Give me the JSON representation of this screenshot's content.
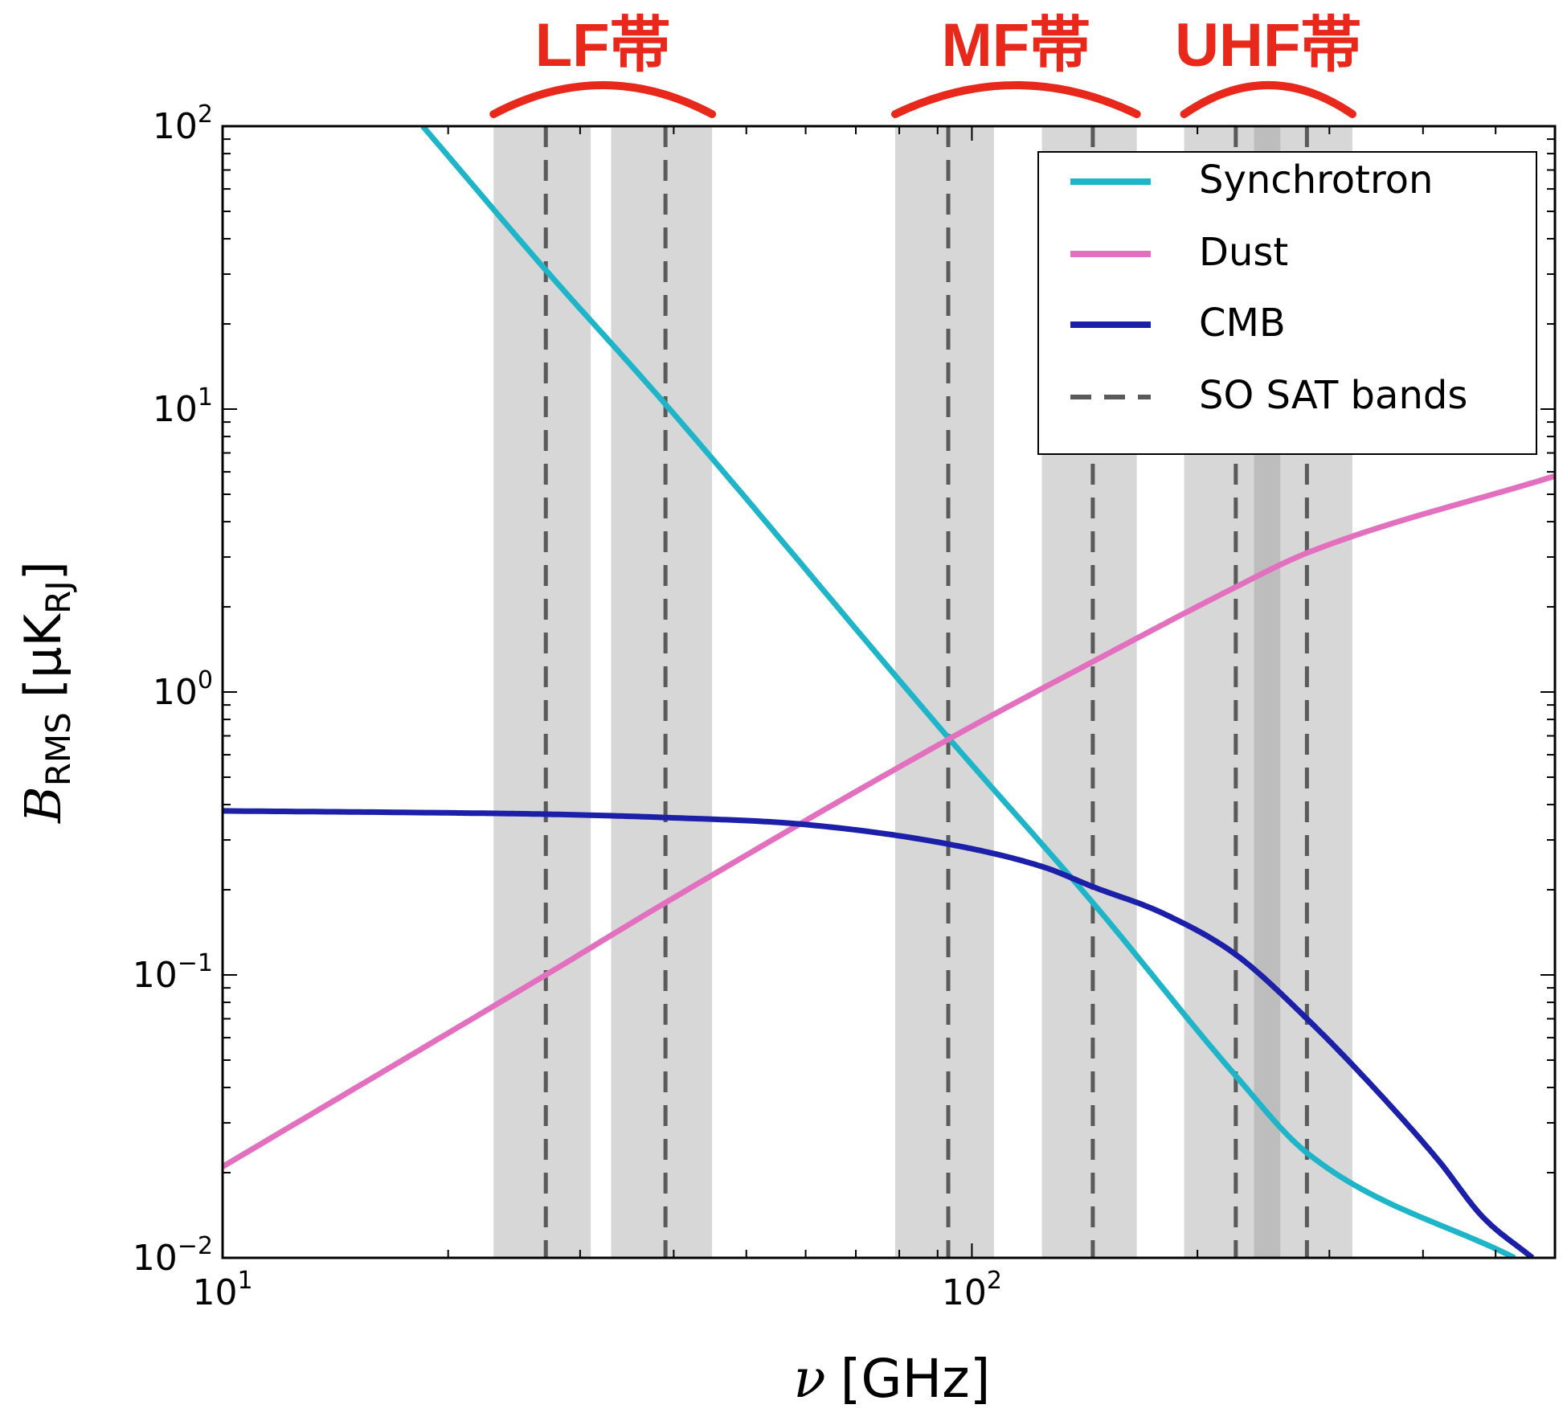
{
  "chart_data": {
    "type": "line",
    "x_scale": "log",
    "y_scale": "log",
    "xlim": [
      10,
      600
    ],
    "ylim": [
      0.01,
      100
    ],
    "xlabel": "ν",
    "xlabel_unit": "[GHz]",
    "ylabel_var": "B",
    "ylabel_sub": "RMS",
    "ylabel_unit_open": "[μK",
    "ylabel_unit_sub": "RJ",
    "ylabel_unit_close": "]",
    "x_ticks": [
      {
        "value": 10,
        "base": "10",
        "exp": "1"
      },
      {
        "value": 100,
        "base": "10",
        "exp": "2"
      }
    ],
    "y_ticks": [
      {
        "value": 100,
        "base": "10",
        "exp": "2"
      },
      {
        "value": 10,
        "base": "10",
        "exp": "1"
      },
      {
        "value": 1,
        "base": "10",
        "exp": "0"
      },
      {
        "value": 0.1,
        "base": "10",
        "exp": "−1"
      },
      {
        "value": 0.01,
        "base": "10",
        "exp": "−2"
      }
    ],
    "grid": false,
    "legend_position": "top-right",
    "series": [
      {
        "name": "Synchrotron",
        "color": "#1fb5c9",
        "style": "solid",
        "x": [
          18.5,
          27,
          39,
          93,
          145,
          225,
          280,
          530
        ],
        "y": [
          100,
          31,
          10.4,
          0.69,
          0.18,
          0.044,
          0.0235,
          0.01
        ]
      },
      {
        "name": "Dust",
        "color": "#e36fbf",
        "style": "solid",
        "x": [
          10,
          27,
          39,
          93,
          145,
          225,
          280,
          600
        ],
        "y": [
          0.021,
          0.1,
          0.18,
          0.68,
          1.28,
          2.35,
          3.1,
          5.8
        ]
      },
      {
        "name": "CMB",
        "color": "#1c1fa8",
        "style": "solid",
        "x": [
          10,
          20,
          27,
          39,
          60,
          93,
          125,
          145,
          180,
          225,
          280,
          350,
          420,
          480,
          560
        ],
        "y": [
          0.38,
          0.374,
          0.37,
          0.36,
          0.34,
          0.29,
          0.24,
          0.205,
          0.165,
          0.118,
          0.07,
          0.038,
          0.022,
          0.014,
          0.01
        ]
      }
    ],
    "bands": [
      {
        "center": 27,
        "lo": 23,
        "hi": 31
      },
      {
        "center": 39,
        "lo": 33,
        "hi": 45
      },
      {
        "center": 93,
        "lo": 79,
        "hi": 107
      },
      {
        "center": 145,
        "lo": 124,
        "hi": 166
      },
      {
        "center": 225,
        "lo": 192,
        "hi": 258
      },
      {
        "center": 280,
        "lo": 238,
        "hi": 322
      }
    ],
    "band_legend": {
      "name": "SO SAT bands",
      "color": "#5a5a5a",
      "style": "dashed"
    },
    "band_fill_color": "#d7d7d7",
    "band_overlap_color": "#bdbdbd",
    "groups": [
      {
        "label": "LF帯",
        "lo": 23,
        "hi": 45
      },
      {
        "label": "MF帯",
        "lo": 79,
        "hi": 166
      },
      {
        "label": "UHF帯",
        "lo": 192,
        "hi": 322
      }
    ],
    "group_color": "#e8281b"
  }
}
